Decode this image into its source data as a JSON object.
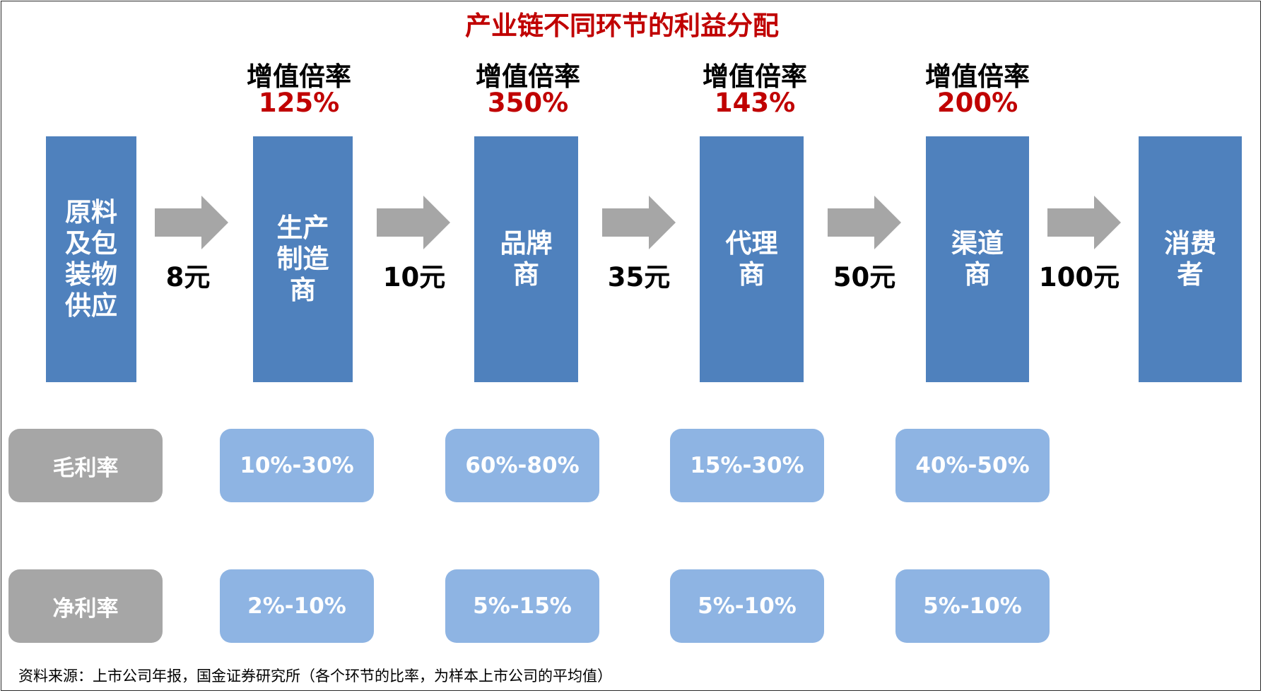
{
  "title": "产业链不同环节的利益分配",
  "value_added": [
    {
      "label": "增值倍率",
      "value": "125%"
    },
    {
      "label": "增值倍率",
      "value": "350%"
    },
    {
      "label": "增值倍率",
      "value": "143%"
    },
    {
      "label": "增值倍率",
      "value": "200%"
    }
  ],
  "stages": [
    "原料\n及包\n装物\n供应",
    "生产\n制造\n商",
    "品牌\n商",
    "代理\n商",
    "渠道\n商",
    "消费\n者"
  ],
  "prices": [
    "8元",
    "10元",
    "35元",
    "50元",
    "100元"
  ],
  "gross_margin": {
    "label": "毛利率",
    "values": [
      "10%-30%",
      "60%-80%",
      "15%-30%",
      "40%-50%"
    ]
  },
  "net_margin": {
    "label": "净利率",
    "values": [
      "2%-10%",
      "5%-15%",
      "5%-10%",
      "5%-10%"
    ]
  },
  "source": "资料来源：上市公司年报，国金证券研究所（各个环节的比率，为样本上市公司的平均值）",
  "colors": {
    "stage_blue": "#4f81bd",
    "pill_blue": "#8eb4e3",
    "label_gray": "#a6a6a6",
    "arrow_gray": "#a6a6a6",
    "accent_red": "#c00000"
  }
}
